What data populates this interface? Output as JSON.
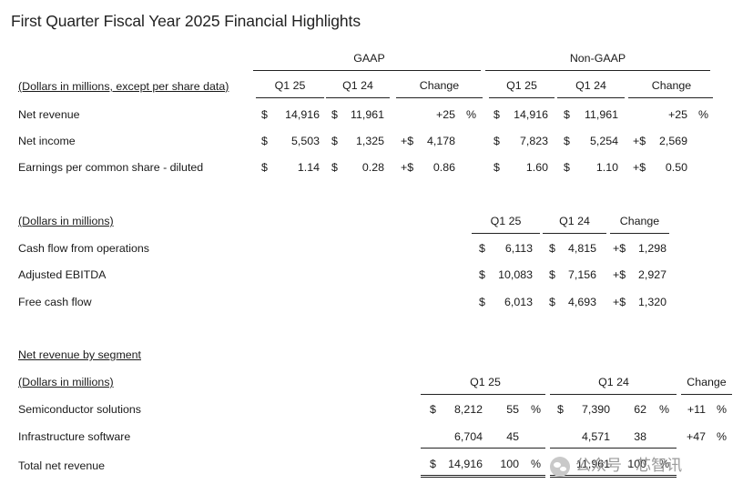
{
  "title": "First Quarter Fiscal Year 2025 Financial Highlights",
  "table1": {
    "group_gaap": "GAAP",
    "group_nongaap": "Non-GAAP",
    "units_label": "(Dollars in millions, except per share data)",
    "col_q125": "Q1 25",
    "col_q124": "Q1 24",
    "col_change": "Change",
    "rows": [
      {
        "label": "Net revenue",
        "g25_cur": "$",
        "g25": "14,916",
        "g24_cur": "$",
        "g24": "11,961",
        "gchg_pre": "",
        "gchg": "+25",
        "gchg_suf": "%",
        "n25_cur": "$",
        "n25": "14,916",
        "n24_cur": "$",
        "n24": "11,961",
        "nchg_pre": "",
        "nchg": "+25",
        "nchg_suf": "%"
      },
      {
        "label": "Net income",
        "g25_cur": "$",
        "g25": "5,503",
        "g24_cur": "$",
        "g24": "1,325",
        "gchg_pre": "+$",
        "gchg": "4,178",
        "gchg_suf": "",
        "n25_cur": "$",
        "n25": "7,823",
        "n24_cur": "$",
        "n24": "5,254",
        "nchg_pre": "+$",
        "nchg": "2,569",
        "nchg_suf": ""
      },
      {
        "label": "Earnings per common share - diluted",
        "g25_cur": "$",
        "g25": "1.14",
        "g24_cur": "$",
        "g24": "0.28",
        "gchg_pre": "+$",
        "gchg": "0.86",
        "gchg_suf": "",
        "n25_cur": "$",
        "n25": "1.60",
        "n24_cur": "$",
        "n24": "1.10",
        "nchg_pre": "+$",
        "nchg": "0.50",
        "nchg_suf": ""
      }
    ]
  },
  "table2": {
    "units_label": "(Dollars in millions)",
    "col_q125": "Q1 25",
    "col_q124": "Q1 24",
    "col_change": "Change",
    "rows": [
      {
        "label": "Cash flow from operations",
        "c25": "$",
        "v25": "6,113",
        "c24": "$",
        "v24": "4,815",
        "chg_pre": "+$",
        "chg": "1,298"
      },
      {
        "label": "Adjusted EBITDA",
        "c25": "$",
        "v25": "10,083",
        "c24": "$",
        "v24": "7,156",
        "chg_pre": "+$",
        "chg": "2,927"
      },
      {
        "label": "Free cash flow",
        "c25": "$",
        "v25": "6,013",
        "c24": "$",
        "v24": "4,693",
        "chg_pre": "+$",
        "chg": "1,320"
      }
    ]
  },
  "table3": {
    "section_label": "Net revenue by segment",
    "units_label": "(Dollars in millions)",
    "col_q125": "Q1 25",
    "col_q124": "Q1 24",
    "col_change": "Change",
    "rows": [
      {
        "label": "Semiconductor solutions",
        "c25": "$",
        "v25": "8,212",
        "p25": "55",
        "p25_suf": "%",
        "c24": "$",
        "v24": "7,390",
        "p24": "62",
        "p24_suf": "%",
        "chg": "+11",
        "chg_suf": "%"
      },
      {
        "label": "Infrastructure software",
        "c25": "",
        "v25": "6,704",
        "p25": "45",
        "p25_suf": "",
        "c24": "",
        "v24": "4,571",
        "p24": "38",
        "p24_suf": "",
        "chg": "+47",
        "chg_suf": "%"
      },
      {
        "label": "Total net revenue",
        "c25": "$",
        "v25": "14,916",
        "p25": "100",
        "p25_suf": "%",
        "c24": "$",
        "v24": "11,961",
        "p24": "100",
        "p24_suf": "%",
        "chg": "",
        "chg_suf": ""
      }
    ]
  },
  "watermark": {
    "text": "公众号 · 芯智讯",
    "icon": "wechat-icon"
  }
}
